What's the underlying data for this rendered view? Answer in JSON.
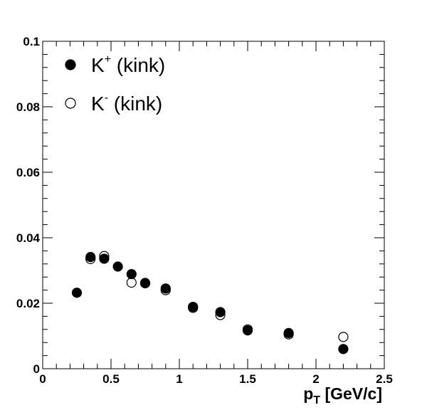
{
  "chart_data": {
    "type": "scatter",
    "title": "",
    "xlabel": {
      "main": "p",
      "sub": "T",
      "rest": " [GeV/c]"
    },
    "ylabel": "",
    "xlim": [
      0,
      2.5
    ],
    "ylim": [
      0,
      0.1
    ],
    "x_ticks": [
      "0",
      "0.5",
      "1",
      "1.5",
      "2",
      "2.5"
    ],
    "y_ticks": [
      "0",
      "0.02",
      "0.04",
      "0.06",
      "0.08",
      "0.1"
    ],
    "grid": false,
    "legend_position": "top-left",
    "series": [
      {
        "name": {
          "base": "K",
          "sup": "+",
          "rest": " (kink)"
        },
        "marker": "filled-circle",
        "color": "#000000",
        "x": [
          0.25,
          0.35,
          0.45,
          0.55,
          0.65,
          0.75,
          0.9,
          1.1,
          1.3,
          1.5,
          1.8,
          2.2
        ],
        "y": [
          0.0232,
          0.0341,
          0.0336,
          0.0312,
          0.0289,
          0.0261,
          0.0245,
          0.0189,
          0.0173,
          0.0117,
          0.0109,
          0.006
        ]
      },
      {
        "name": {
          "base": "K",
          "sup": "-",
          "rest": " (kink)"
        },
        "marker": "open-circle",
        "color": "#000000",
        "x": [
          0.35,
          0.45,
          0.65,
          0.75,
          0.9,
          1.1,
          1.3,
          1.5,
          1.8,
          2.2
        ],
        "y": [
          0.0335,
          0.0344,
          0.0263,
          0.0262,
          0.024,
          0.0186,
          0.0164,
          0.012,
          0.0105,
          0.0097
        ]
      }
    ]
  }
}
